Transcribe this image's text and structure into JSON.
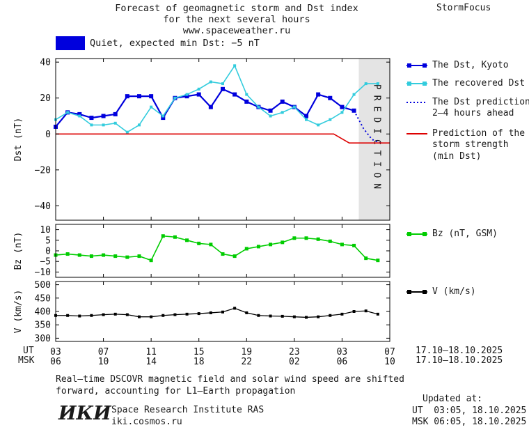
{
  "header": {
    "title_line1": "Forecast of geomagnetic storm and Dst index",
    "title_line2": "for the next several hours",
    "title_line3": "www.spaceweather.ru",
    "brand": "StormFocus"
  },
  "status": {
    "label": "Quiet, expected min Dst: −5 nT",
    "box_color": "#0000dd"
  },
  "legend_dst": {
    "kyoto": "The Dst, Kyoto",
    "recovered": "The recovered Dst",
    "prediction_l1": "The Dst prediction",
    "prediction_l2": "2–4 hours ahead",
    "storm_l1": "Prediction of the",
    "storm_l2": "storm strength",
    "storm_l3": "(min Dst)"
  },
  "legend_bz": "Bz (nT, GSM)",
  "legend_v": "V (km/s)",
  "xaxis": {
    "ut_label": "UT",
    "msk_label": "MSK",
    "ut_ticks": [
      "03",
      "07",
      "11",
      "15",
      "19",
      "23",
      "03",
      "07"
    ],
    "msk_ticks": [
      "06",
      "10",
      "14",
      "18",
      "22",
      "02",
      "06",
      "10"
    ],
    "ut_date_range": "17.10–18.10.2025",
    "msk_date_range": "17.10–18.10.2025"
  },
  "prediction_zone": {
    "label": "PREDICTION",
    "fill": "#e4e4e4",
    "text_color": "#b3b3b3"
  },
  "footnote": {
    "line1": "Real–time DSCOVR magnetic field and solar wind speed are shifted",
    "line2": "forward, accounting for L1–Earth propagation"
  },
  "updated": {
    "label": "Updated at:",
    "ut": "UT  03:05, 18.10.2025",
    "msk": "MSK 06:05, 18.10.2025"
  },
  "footer": {
    "logo": "ИКИ",
    "institute": "Space Research Institute RAS",
    "site": "iki.cosmos.ru"
  },
  "colors": {
    "dst_kyoto": "#0000dd",
    "recovered": "#33ccdd",
    "prediction": "#0000dd",
    "storm": "#dd0000",
    "bz": "#00cc00",
    "v": "#000000"
  },
  "chart_data": [
    {
      "type": "line",
      "name": "dst-panel",
      "ylabel": "Dst (nT)",
      "ylim": [
        -48,
        42
      ],
      "yticks": [
        40,
        20,
        0,
        -20,
        -40
      ],
      "xlim": [
        0,
        28
      ],
      "xticks": [
        0,
        4,
        8,
        12,
        16,
        20,
        24,
        28
      ],
      "x_unit": "hours since 17.10.2025 03:00 UT",
      "prediction_zone_x": [
        25.4,
        28
      ],
      "series": [
        {
          "name": "The Dst, Kyoto",
          "color": "#0000dd",
          "style": "solid",
          "marker": true,
          "x": [
            0,
            1,
            2,
            3,
            4,
            5,
            6,
            7,
            8,
            9,
            10,
            11,
            12,
            13,
            14,
            15,
            16,
            17,
            18,
            19,
            20,
            21,
            22,
            23,
            24,
            25
          ],
          "y": [
            4,
            12,
            11,
            9,
            10,
            11,
            21,
            21,
            21,
            9,
            20,
            21,
            22,
            15,
            25,
            22,
            18,
            15,
            13,
            18,
            15,
            10,
            22,
            20,
            15,
            13
          ]
        },
        {
          "name": "The recovered Dst",
          "color": "#33ccdd",
          "style": "solid",
          "marker": true,
          "x": [
            0,
            1,
            2,
            3,
            4,
            5,
            6,
            7,
            8,
            9,
            10,
            11,
            12,
            13,
            14,
            15,
            16,
            17,
            18,
            19,
            20,
            21,
            22,
            23,
            24,
            25,
            26,
            27
          ],
          "y": [
            8,
            12,
            10,
            5,
            5,
            6,
            1,
            5,
            15,
            10,
            20,
            22,
            25,
            29,
            28,
            38,
            22,
            15,
            10,
            12,
            15,
            8,
            5,
            8,
            12,
            22,
            28,
            28
          ]
        },
        {
          "name": "The Dst prediction 2–4 hours ahead",
          "color": "#0000dd",
          "style": "dotted",
          "marker": false,
          "x": [
            25,
            25.8,
            26.5,
            27.2
          ],
          "y": [
            13,
            3,
            -3,
            -5
          ]
        },
        {
          "name": "Prediction of the storm strength (min Dst)",
          "color": "#dd0000",
          "style": "solid",
          "marker": false,
          "x": [
            0,
            23.3,
            24.6,
            28
          ],
          "y": [
            0,
            0,
            -5,
            -5
          ]
        }
      ]
    },
    {
      "type": "line",
      "name": "bz-panel",
      "ylabel": "Bz (nT)",
      "ylim": [
        -12.5,
        12.5
      ],
      "yticks": [
        10,
        5,
        0,
        -5,
        -10
      ],
      "xlim": [
        0,
        28
      ],
      "xticks": [
        0,
        4,
        8,
        12,
        16,
        20,
        24,
        28
      ],
      "series": [
        {
          "name": "Bz (nT, GSM)",
          "color": "#00cc00",
          "style": "solid",
          "marker": true,
          "x": [
            0,
            1,
            2,
            3,
            4,
            5,
            6,
            7,
            8,
            9,
            10,
            11,
            12,
            13,
            14,
            15,
            16,
            17,
            18,
            19,
            20,
            21,
            22,
            23,
            24,
            25,
            26,
            27
          ],
          "y": [
            -2,
            -1.5,
            -2,
            -2.5,
            -2,
            -2.5,
            -3,
            -2.5,
            -4.5,
            7,
            6.5,
            5,
            3.5,
            3,
            -1.5,
            -2.5,
            1,
            2,
            3,
            4,
            6,
            6,
            5.5,
            4.5,
            3,
            2.5,
            -3.5,
            -4.5
          ]
        }
      ]
    },
    {
      "type": "line",
      "name": "v-panel",
      "ylabel": "V (km/s)",
      "ylim": [
        288,
        512
      ],
      "yticks": [
        500,
        450,
        400,
        350,
        300
      ],
      "xlim": [
        0,
        28
      ],
      "xticks": [
        0,
        4,
        8,
        12,
        16,
        20,
        24,
        28
      ],
      "series": [
        {
          "name": "V (km/s)",
          "color": "#000000",
          "style": "solid",
          "marker": true,
          "x": [
            0,
            1,
            2,
            3,
            4,
            5,
            6,
            7,
            8,
            9,
            10,
            11,
            12,
            13,
            14,
            15,
            16,
            17,
            18,
            19,
            20,
            21,
            22,
            23,
            24,
            25,
            26,
            27
          ],
          "y": [
            385,
            385,
            383,
            385,
            388,
            390,
            388,
            380,
            380,
            385,
            388,
            390,
            392,
            395,
            398,
            412,
            395,
            385,
            383,
            382,
            380,
            378,
            380,
            385,
            390,
            400,
            402,
            390
          ]
        }
      ]
    }
  ]
}
